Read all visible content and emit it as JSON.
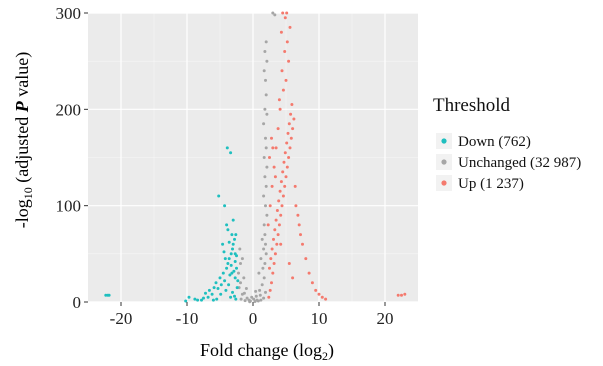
{
  "chart_data": {
    "type": "scatter",
    "title": "",
    "xlabel": "Fold change",
    "xlabel_unit": "(log",
    "xlabel_sub": "2",
    "xlabel_close": ")",
    "ylabel_prefix": "-log",
    "ylabel_sub": "10",
    "ylabel_mid": " (adjusted ",
    "ylabel_p": "P",
    "ylabel_suffix": " value)",
    "xlim": [
      -25,
      25
    ],
    "ylim": [
      0,
      300
    ],
    "x_ticks": [
      -20,
      -10,
      0,
      10,
      20
    ],
    "x_tick_labels": [
      "-20",
      "-10",
      "0",
      "10",
      "20"
    ],
    "y_ticks": [
      0,
      100,
      200,
      300
    ],
    "y_tick_labels": [
      "0",
      "100",
      "200",
      "300"
    ],
    "grid": true,
    "background": "#ebebeb",
    "legend": {
      "title": "Threshold",
      "placement": "right",
      "entries": [
        {
          "key": "down",
          "label": "Down (762)",
          "color": "#1fbfbf"
        },
        {
          "key": "unchanged",
          "label": "Unchanged (32 987)",
          "color": "#a6a6a6"
        },
        {
          "key": "up",
          "label": "Up (1 237)",
          "color": "#f47a6e"
        }
      ]
    },
    "series": [
      {
        "name": "Unchanged (32 987)",
        "color": "#a6a6a6",
        "points": [
          [
            -0.5,
            0.2
          ],
          [
            0.3,
            0.5
          ],
          [
            0.8,
            1
          ],
          [
            1.2,
            2
          ],
          [
            -1.2,
            1.5
          ],
          [
            -1.8,
            3
          ],
          [
            1.6,
            4
          ],
          [
            -0.6,
            2
          ],
          [
            0.5,
            6
          ],
          [
            1.9,
            10
          ],
          [
            -1.6,
            8
          ],
          [
            1.0,
            12
          ],
          [
            1.4,
            18
          ],
          [
            -1.0,
            14
          ],
          [
            -1.9,
            20
          ],
          [
            1.7,
            25
          ],
          [
            0.9,
            30
          ],
          [
            1.8,
            40
          ],
          [
            1.5,
            35
          ],
          [
            1.2,
            45
          ],
          [
            1.6,
            55
          ],
          [
            1.9,
            60
          ],
          [
            2.0,
            50
          ],
          [
            1.8,
            70
          ],
          [
            1.7,
            80
          ],
          [
            1.4,
            65
          ],
          [
            2.1,
            90
          ],
          [
            1.9,
            100
          ],
          [
            1.6,
            110
          ],
          [
            2.0,
            120
          ],
          [
            1.8,
            130
          ],
          [
            2.1,
            140
          ],
          [
            1.7,
            150
          ],
          [
            2.0,
            160
          ],
          [
            1.9,
            170
          ],
          [
            1.6,
            185
          ],
          [
            2.1,
            195
          ],
          [
            1.8,
            200
          ],
          [
            2.0,
            215
          ],
          [
            1.9,
            230
          ],
          [
            1.7,
            240
          ],
          [
            2.1,
            250
          ],
          [
            1.8,
            260
          ],
          [
            2.0,
            270
          ],
          [
            3.3,
            298
          ],
          [
            3.0,
            300
          ],
          [
            -2.0,
            55
          ],
          [
            -1.6,
            45
          ],
          [
            -1.9,
            40
          ],
          [
            -2.2,
            30
          ],
          [
            -1.4,
            25
          ],
          [
            -2.1,
            15
          ],
          [
            -0.4,
            1
          ],
          [
            0.1,
            3
          ],
          [
            -0.2,
            5
          ],
          [
            0.6,
            2
          ],
          [
            -0.9,
            4
          ],
          [
            1.1,
            7
          ],
          [
            -1.3,
            9
          ],
          [
            0.4,
            11
          ]
        ]
      },
      {
        "name": "Down (762)",
        "color": "#1fbfbf",
        "points": [
          [
            -22.3,
            7
          ],
          [
            -22.0,
            7
          ],
          [
            -21.8,
            7
          ],
          [
            -10.2,
            1
          ],
          [
            -9.7,
            5
          ],
          [
            -8.8,
            3
          ],
          [
            -8.4,
            2
          ],
          [
            -7.5,
            4
          ],
          [
            -7.2,
            9
          ],
          [
            -6.6,
            12
          ],
          [
            -6.2,
            8
          ],
          [
            -5.9,
            15
          ],
          [
            -5.6,
            20
          ],
          [
            -5.3,
            14
          ],
          [
            -5.0,
            25
          ],
          [
            -4.8,
            18
          ],
          [
            -4.5,
            30
          ],
          [
            -4.3,
            22
          ],
          [
            -4.0,
            35
          ],
          [
            -3.8,
            40
          ],
          [
            -3.6,
            45
          ],
          [
            -3.5,
            28
          ],
          [
            -3.3,
            50
          ],
          [
            -3.1,
            55
          ],
          [
            -3.0,
            60
          ],
          [
            -2.9,
            32
          ],
          [
            -2.8,
            65
          ],
          [
            -2.7,
            42
          ],
          [
            -2.6,
            70
          ],
          [
            -2.5,
            48
          ],
          [
            -4.6,
            60
          ],
          [
            -4.0,
            80
          ],
          [
            -3.8,
            75
          ],
          [
            -3.2,
            70
          ],
          [
            -3.0,
            85
          ],
          [
            -2.7,
            50
          ],
          [
            -3.9,
            160
          ],
          [
            -3.4,
            155
          ],
          [
            -5.2,
            110
          ],
          [
            -4.3,
            100
          ],
          [
            -4.9,
            8
          ],
          [
            -5.5,
            3
          ],
          [
            -6.0,
            2
          ],
          [
            -6.8,
            5
          ],
          [
            -7.8,
            2
          ],
          [
            -4.1,
            12
          ],
          [
            -3.7,
            18
          ],
          [
            -3.4,
            5
          ],
          [
            -3.1,
            10
          ],
          [
            -2.8,
            6
          ],
          [
            -2.6,
            3
          ],
          [
            -2.4,
            15
          ],
          [
            -2.3,
            22
          ],
          [
            -2.5,
            35
          ],
          [
            -2.7,
            25
          ],
          [
            -3.2,
            30
          ],
          [
            -4.2,
            45
          ],
          [
            -4.4,
            52
          ],
          [
            -3.6,
            62
          ],
          [
            -3.3,
            38
          ]
        ]
      },
      {
        "name": "Up (1 237)",
        "color": "#f47a6e",
        "points": [
          [
            2.4,
            5
          ],
          [
            2.6,
            12
          ],
          [
            2.8,
            20
          ],
          [
            3.0,
            30
          ],
          [
            3.2,
            40
          ],
          [
            3.4,
            50
          ],
          [
            3.6,
            60
          ],
          [
            3.8,
            70
          ],
          [
            4.0,
            80
          ],
          [
            4.2,
            90
          ],
          [
            4.4,
            100
          ],
          [
            4.6,
            110
          ],
          [
            4.8,
            120
          ],
          [
            5.0,
            130
          ],
          [
            5.2,
            140
          ],
          [
            5.4,
            150
          ],
          [
            5.6,
            160
          ],
          [
            5.8,
            170
          ],
          [
            6.0,
            180
          ],
          [
            6.2,
            190
          ],
          [
            2.5,
            35
          ],
          [
            2.7,
            45
          ],
          [
            2.9,
            55
          ],
          [
            3.1,
            65
          ],
          [
            3.3,
            75
          ],
          [
            3.5,
            85
          ],
          [
            3.7,
            95
          ],
          [
            3.9,
            105
          ],
          [
            4.1,
            115
          ],
          [
            4.3,
            125
          ],
          [
            4.5,
            135
          ],
          [
            4.7,
            145
          ],
          [
            4.9,
            155
          ],
          [
            5.1,
            165
          ],
          [
            5.3,
            175
          ],
          [
            5.5,
            185
          ],
          [
            5.7,
            195
          ],
          [
            5.9,
            205
          ],
          [
            4.0,
            210
          ],
          [
            4.6,
            220
          ],
          [
            5.0,
            230
          ],
          [
            4.4,
            240
          ],
          [
            5.4,
            250
          ],
          [
            4.8,
            260
          ],
          [
            5.2,
            270
          ],
          [
            4.3,
            280
          ],
          [
            5.6,
            285
          ],
          [
            4.9,
            295
          ],
          [
            4.5,
            300
          ],
          [
            5.1,
            300
          ],
          [
            6.5,
            100
          ],
          [
            7.0,
            80
          ],
          [
            7.5,
            60
          ],
          [
            8.0,
            45
          ],
          [
            8.5,
            30
          ],
          [
            9.0,
            20
          ],
          [
            9.5,
            12
          ],
          [
            10.0,
            8
          ],
          [
            10.5,
            5
          ],
          [
            11.0,
            3
          ],
          [
            2.3,
            80
          ],
          [
            2.6,
            100
          ],
          [
            2.9,
            120
          ],
          [
            3.2,
            140
          ],
          [
            3.5,
            160
          ],
          [
            3.8,
            180
          ],
          [
            4.1,
            200
          ],
          [
            6.4,
            120
          ],
          [
            6.8,
            90
          ],
          [
            7.2,
            70
          ],
          [
            22.0,
            7
          ],
          [
            22.5,
            7
          ],
          [
            23.0,
            8
          ],
          [
            2.5,
            150
          ],
          [
            2.8,
            170
          ],
          [
            3.0,
            160
          ],
          [
            3.4,
            130
          ],
          [
            4.2,
            60
          ],
          [
            5.5,
            40
          ],
          [
            6.0,
            25
          ]
        ]
      }
    ]
  }
}
